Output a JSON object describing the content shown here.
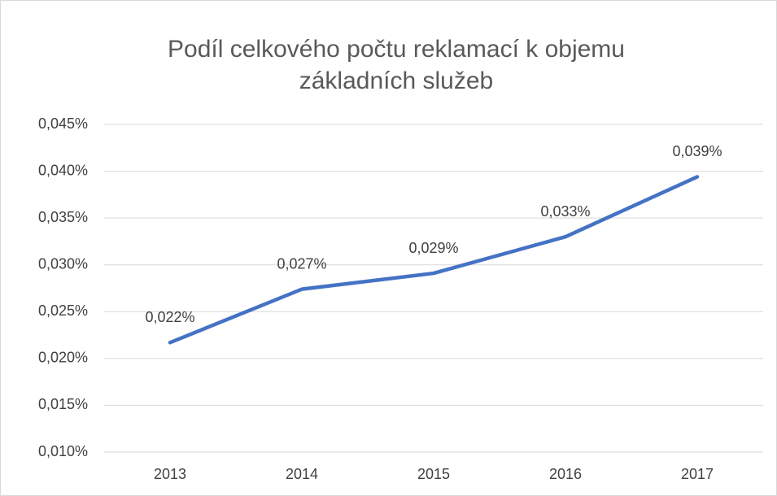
{
  "chart_data": {
    "type": "line",
    "title": [
      "Podíl celkového počtu reklamací k objemu",
      "základních služeb"
    ],
    "categories": [
      "2013",
      "2014",
      "2015",
      "2016",
      "2017"
    ],
    "series": [
      {
        "name": "Podíl",
        "color": "#4472c4",
        "values": [
          0.0217,
          0.0274,
          0.0291,
          0.033,
          0.0394
        ],
        "value_labels": [
          "0,022%",
          "0,027%",
          "0,029%",
          "0,033%",
          "0,039%"
        ]
      }
    ],
    "ylim": [
      0.01,
      0.045
    ],
    "yticks": [
      {
        "value": 0.01,
        "label": "0,010%"
      },
      {
        "value": 0.015,
        "label": "0,015%"
      },
      {
        "value": 0.02,
        "label": "0,020%"
      },
      {
        "value": 0.025,
        "label": "0,025%"
      },
      {
        "value": 0.03,
        "label": "0,030%"
      },
      {
        "value": 0.035,
        "label": "0,035%"
      },
      {
        "value": 0.04,
        "label": "0,040%"
      },
      {
        "value": 0.045,
        "label": "0,045%"
      }
    ],
    "grid": true
  }
}
